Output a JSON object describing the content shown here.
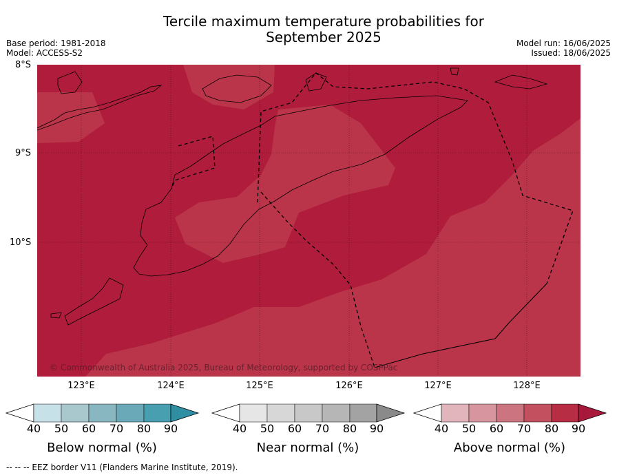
{
  "title_line1": "Tercile maximum temperature probabilities for",
  "title_line2": "September 2025",
  "meta_left": [
    "Base period: 1981-2018",
    "Model: ACCESS-S2"
  ],
  "meta_right": [
    "Model run: 16/06/2025",
    "Issued: 18/06/2025"
  ],
  "lat_labels": [
    "8°S",
    "9°S",
    "10°S"
  ],
  "lon_labels": [
    "123°E",
    "124°E",
    "125°E",
    "126°E",
    "127°E",
    "128°E"
  ],
  "copyright": "© Commonwealth of Australia 2025, Bureau of Meteorology, supported by COSPPac",
  "colorbars": [
    {
      "name": "Below normal (%)",
      "colors": [
        "#c7e1e8",
        "#a8c8cd",
        "#88b6c1",
        "#6aa9b7",
        "#479faf",
        "#2f8ea2"
      ]
    },
    {
      "name": "Near normal (%)",
      "colors": [
        "#e6e6e6",
        "#d7d7d7",
        "#c8c8c8",
        "#b6b6b6",
        "#a3a3a3",
        "#8a8a8a"
      ]
    },
    {
      "name": "Above normal (%)",
      "colors": [
        "#e2b4bc",
        "#d7959f",
        "#cc7480",
        "#c3505f",
        "#b72d44",
        "#a8183a"
      ]
    }
  ],
  "colorbar_ticks": [
    "40",
    "50",
    "60",
    "70",
    "80",
    "90"
  ],
  "legend_footer": "--  --  -- EEZ border V11 (Flanders Marine Institute, 2019).",
  "map_colors": {
    "above_90": "#b01c3b",
    "above_80": "#ba3549",
    "sea_bg": "#b01c3b"
  }
}
